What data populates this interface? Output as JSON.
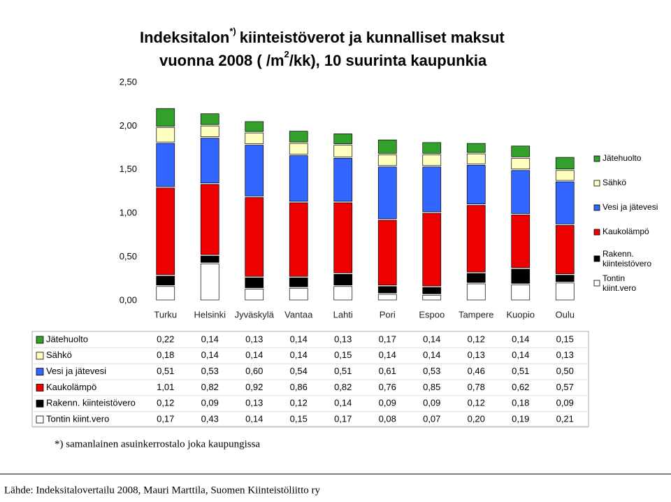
{
  "chart_data": {
    "type": "stacked_bar",
    "title_line1": [
      "Indeksitalon",
      "*)",
      "kiinteistöverot ja kunnalliset maksut"
    ],
    "title_line2": [
      "vuonna 2008 ( /m",
      "2",
      "/kk), 10 suurinta kaupunkia"
    ],
    "categories": [
      "Turku",
      "Helsinki",
      "Jyväskylä",
      "Vantaa",
      "Lahti",
      "Pori",
      "Espoo",
      "Tampere",
      "Kuopio",
      "Oulu"
    ],
    "ylim": [
      0,
      2.5
    ],
    "yticks": [
      {
        "value": 0,
        "label": "0,00"
      },
      {
        "value": 0.5,
        "label": "0,50"
      },
      {
        "value": 1,
        "label": "1,00"
      },
      {
        "value": 1.5,
        "label": "1,50"
      },
      {
        "value": 2,
        "label": "2,00"
      },
      {
        "value": 2.5,
        "label": "2,50"
      }
    ],
    "grid": false,
    "legend": "right",
    "series": [
      {
        "name": "Jätehuolto",
        "color": "#33a02c",
        "values": [
          0.22,
          0.14,
          0.13,
          0.14,
          0.13,
          0.17,
          0.14,
          0.12,
          0.14,
          0.15
        ],
        "value_labels": [
          "0,22",
          "0,14",
          "0,13",
          "0,14",
          "0,13",
          "0,17",
          "0,14",
          "0,12",
          "0,14",
          "0,15"
        ]
      },
      {
        "name": "Sähkö",
        "color": "#ffffc0",
        "values": [
          0.18,
          0.14,
          0.14,
          0.14,
          0.15,
          0.14,
          0.14,
          0.13,
          0.14,
          0.13
        ],
        "value_labels": [
          "0,18",
          "0,14",
          "0,14",
          "0,14",
          "0,15",
          "0,14",
          "0,14",
          "0,13",
          "0,14",
          "0,13"
        ]
      },
      {
        "name": "Vesi ja jätevesi",
        "color": "#3366ff",
        "values": [
          0.51,
          0.53,
          0.6,
          0.54,
          0.51,
          0.61,
          0.53,
          0.46,
          0.51,
          0.5
        ],
        "value_labels": [
          "0,51",
          "0,53",
          "0,60",
          "0,54",
          "0,51",
          "0,61",
          "0,53",
          "0,46",
          "0,51",
          "0,50"
        ]
      },
      {
        "name": "Kaukolämpö",
        "color": "#ee0000",
        "values": [
          1.01,
          0.82,
          0.92,
          0.86,
          0.82,
          0.76,
          0.85,
          0.78,
          0.62,
          0.57
        ],
        "value_labels": [
          "1,01",
          "0,82",
          "0,92",
          "0,86",
          "0,82",
          "0,76",
          "0,85",
          "0,78",
          "0,62",
          "0,57"
        ]
      },
      {
        "name": "Rakenn. kiinteistövero",
        "color": "#000000",
        "values": [
          0.12,
          0.09,
          0.13,
          0.12,
          0.14,
          0.09,
          0.09,
          0.12,
          0.18,
          0.09
        ],
        "value_labels": [
          "0,12",
          "0,09",
          "0,13",
          "0,12",
          "0,14",
          "0,09",
          "0,09",
          "0,12",
          "0,18",
          "0,09"
        ]
      },
      {
        "name": "Tontin kiint.vero",
        "color": "#ffffff",
        "values": [
          0.17,
          0.43,
          0.14,
          0.15,
          0.17,
          0.08,
          0.07,
          0.2,
          0.19,
          0.21
        ],
        "value_labels": [
          "0,17",
          "0,43",
          "0,14",
          "0,15",
          "0,17",
          "0,08",
          "0,07",
          "0,20",
          "0,19",
          "0,21"
        ]
      }
    ],
    "footnote": "*) samanlainen asuinkerrostalo joka kaupungissa",
    "source": "Lähde: Indeksitalovertailu 2008, Mauri Marttila, Suomen Kiinteistöliitto ry"
  }
}
